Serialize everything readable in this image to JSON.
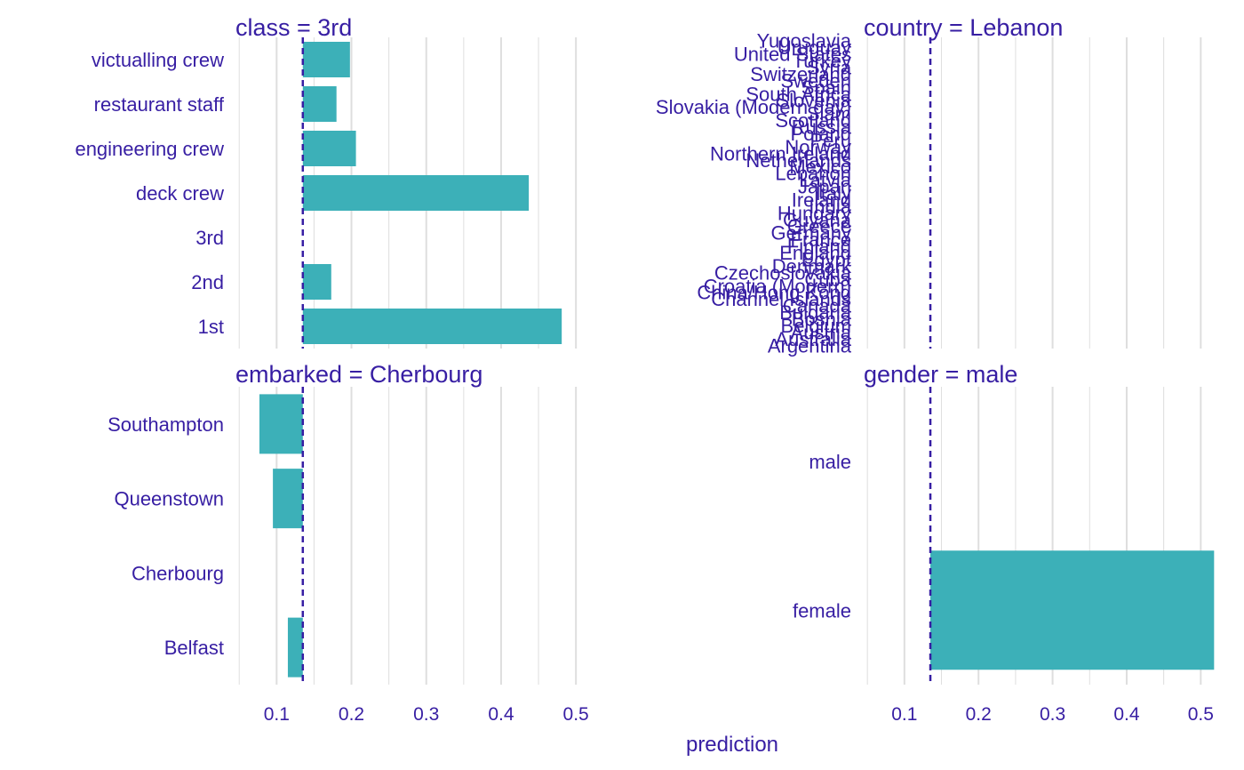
{
  "colors": {
    "bar": "#3cb0b8",
    "text": "#371ea3",
    "grid": "#dedede",
    "baseline": "#371ea3",
    "background": "#ffffff"
  },
  "chart_data": {
    "type": "bar",
    "orientation": "horizontal",
    "xlabel": "prediction",
    "baseline": 0.135,
    "grid": true,
    "x_ticks": [
      "0.1",
      "0.2",
      "0.3",
      "0.4",
      "0.5"
    ],
    "xlim": [
      0.045,
      0.52
    ],
    "panels": [
      {
        "title": "class = 3rd",
        "categories": [
          "victualling crew",
          "restaurant staff",
          "engineering crew",
          "deck crew",
          "3rd",
          "2nd",
          "1st"
        ],
        "values": [
          0.198,
          0.18,
          0.206,
          0.437,
          0.135,
          0.173,
          0.481
        ]
      },
      {
        "title": "country = Lebanon",
        "categories": [
          "Yugoslavia",
          "Uruguay",
          "United States",
          "Turkey",
          "Syria",
          "Switzerland",
          "Sweden",
          "Spain",
          "South Africa",
          "Slovenia",
          "Slovakia (Modern day)",
          "Siam",
          "Scotland",
          "Russia",
          "Poland",
          "Peru",
          "Norway",
          "Northern Ireland",
          "Netherlands",
          "Mexico",
          "Lebanon",
          "Latvia",
          "Japan",
          "Italy",
          "Ireland",
          "India",
          "Hungary",
          "Guyana",
          "Greece",
          "Germany",
          "France",
          "Finland",
          "England",
          "Egypt",
          "Denmark",
          "Czechoslovakia",
          "Cuba",
          "Croatia (Modern)",
          "China/Hong Kong",
          "Channel Islands",
          "Canada",
          "Bulgaria",
          "Bosnia",
          "Belgium",
          "Austria",
          "Australia",
          "Argentina"
        ],
        "values": [
          0.135,
          0.135,
          0.135,
          0.135,
          0.135,
          0.135,
          0.135,
          0.135,
          0.135,
          0.135,
          0.135,
          0.135,
          0.135,
          0.135,
          0.135,
          0.135,
          0.135,
          0.135,
          0.135,
          0.135,
          0.135,
          0.135,
          0.135,
          0.135,
          0.135,
          0.135,
          0.135,
          0.135,
          0.135,
          0.135,
          0.135,
          0.135,
          0.135,
          0.135,
          0.135,
          0.135,
          0.135,
          0.135,
          0.135,
          0.135,
          0.135,
          0.135,
          0.135,
          0.135,
          0.135,
          0.135,
          0.135
        ]
      },
      {
        "title": "embarked = Cherbourg",
        "categories": [
          "Southampton",
          "Queenstown",
          "Cherbourg",
          "Belfast"
        ],
        "values": [
          0.077,
          0.095,
          0.135,
          0.115
        ]
      },
      {
        "title": "gender = male",
        "categories": [
          "male",
          "female"
        ],
        "values": [
          0.135,
          0.518
        ]
      }
    ]
  }
}
